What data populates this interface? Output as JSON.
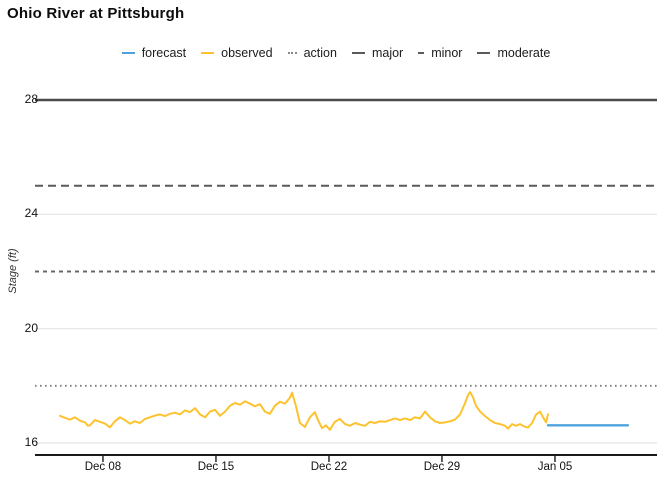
{
  "title": "Ohio River at Pittsburgh",
  "legend": [
    {
      "id": "forecast",
      "label": "forecast",
      "color": "#4FA3DC",
      "style": "solid",
      "w": 13
    },
    {
      "id": "observed",
      "label": "observed",
      "color": "#FDC32F",
      "style": "solid",
      "w": 13
    },
    {
      "id": "action",
      "label": "action",
      "color": "#8a8a8a",
      "style": "dotted",
      "w": 9
    },
    {
      "id": "major",
      "label": "major",
      "color": "#5a5a5a",
      "style": "solid",
      "w": 13
    },
    {
      "id": "minor",
      "label": "minor",
      "color": "#5a5a5a",
      "style": "solid",
      "w": 6
    },
    {
      "id": "moderate",
      "label": "moderate",
      "color": "#5a5a5a",
      "style": "solid",
      "w": 13
    }
  ],
  "chart_data": {
    "type": "line",
    "title": "Ohio River at Pittsburgh",
    "xlabel": "",
    "ylabel": "Stage (ft)",
    "grid": true,
    "legend_position": "top",
    "ylim": [
      15.58,
      28.0
    ],
    "yticks": [
      16,
      20,
      24,
      28
    ],
    "xlim_days": [
      -1.21,
      37.32
    ],
    "xticks": [
      {
        "day": 3,
        "label": "Dec 08"
      },
      {
        "day": 10,
        "label": "Dec 15"
      },
      {
        "day": 17,
        "label": "Dec 22"
      },
      {
        "day": 24,
        "label": "Dec 29"
      },
      {
        "day": 31,
        "label": "Jan 05"
      }
    ],
    "thresholds": [
      {
        "name": "action",
        "value": 18,
        "line": "dotted",
        "color": "#7d7d7d"
      },
      {
        "name": "minor",
        "value": 22,
        "line": "dashed-short",
        "color": "#666666"
      },
      {
        "name": "moderate",
        "value": 25,
        "line": "dashed-long",
        "color": "#5a5a5a"
      },
      {
        "name": "major",
        "value": 28,
        "line": "solid",
        "color": "#4a4a4a"
      }
    ],
    "series": [
      {
        "name": "observed",
        "color": "#FDC32F",
        "width": 2,
        "points": [
          [
            0.34,
            16.95
          ],
          [
            0.65,
            16.88
          ],
          [
            0.96,
            16.82
          ],
          [
            1.27,
            16.9
          ],
          [
            1.58,
            16.78
          ],
          [
            1.89,
            16.72
          ],
          [
            2.07,
            16.6
          ],
          [
            2.19,
            16.62
          ],
          [
            2.5,
            16.8
          ],
          [
            2.81,
            16.74
          ],
          [
            3.12,
            16.68
          ],
          [
            3.43,
            16.55
          ],
          [
            3.74,
            16.76
          ],
          [
            4.05,
            16.9
          ],
          [
            4.36,
            16.8
          ],
          [
            4.67,
            16.68
          ],
          [
            4.98,
            16.76
          ],
          [
            5.29,
            16.7
          ],
          [
            5.6,
            16.84
          ],
          [
            5.91,
            16.9
          ],
          [
            6.22,
            16.96
          ],
          [
            6.53,
            17.0
          ],
          [
            6.84,
            16.94
          ],
          [
            7.15,
            17.02
          ],
          [
            7.46,
            17.06
          ],
          [
            7.77,
            17.0
          ],
          [
            8.08,
            17.14
          ],
          [
            8.39,
            17.08
          ],
          [
            8.7,
            17.22
          ],
          [
            9.01,
            17.0
          ],
          [
            9.32,
            16.9
          ],
          [
            9.63,
            17.1
          ],
          [
            9.94,
            17.16
          ],
          [
            10.25,
            16.95
          ],
          [
            10.56,
            17.1
          ],
          [
            10.87,
            17.3
          ],
          [
            11.18,
            17.4
          ],
          [
            11.49,
            17.34
          ],
          [
            11.8,
            17.46
          ],
          [
            12.11,
            17.38
          ],
          [
            12.41,
            17.28
          ],
          [
            12.72,
            17.36
          ],
          [
            13.03,
            17.1
          ],
          [
            13.34,
            17.02
          ],
          [
            13.65,
            17.3
          ],
          [
            13.96,
            17.44
          ],
          [
            14.27,
            17.38
          ],
          [
            14.58,
            17.58
          ],
          [
            14.71,
            17.76
          ],
          [
            14.95,
            17.3
          ],
          [
            15.2,
            16.7
          ],
          [
            15.51,
            16.56
          ],
          [
            15.82,
            16.9
          ],
          [
            16.13,
            17.08
          ],
          [
            16.32,
            16.8
          ],
          [
            16.57,
            16.52
          ],
          [
            16.81,
            16.62
          ],
          [
            17.06,
            16.46
          ],
          [
            17.37,
            16.74
          ],
          [
            17.68,
            16.84
          ],
          [
            17.99,
            16.66
          ],
          [
            18.3,
            16.6
          ],
          [
            18.61,
            16.7
          ],
          [
            18.92,
            16.64
          ],
          [
            19.23,
            16.6
          ],
          [
            19.54,
            16.74
          ],
          [
            19.85,
            16.7
          ],
          [
            20.16,
            16.76
          ],
          [
            20.47,
            16.74
          ],
          [
            20.78,
            16.8
          ],
          [
            21.09,
            16.86
          ],
          [
            21.4,
            16.8
          ],
          [
            21.71,
            16.86
          ],
          [
            22.02,
            16.8
          ],
          [
            22.33,
            16.9
          ],
          [
            22.64,
            16.86
          ],
          [
            22.95,
            17.1
          ],
          [
            23.26,
            16.9
          ],
          [
            23.57,
            16.76
          ],
          [
            23.88,
            16.7
          ],
          [
            24.19,
            16.72
          ],
          [
            24.5,
            16.76
          ],
          [
            24.81,
            16.82
          ],
          [
            25.12,
            17.0
          ],
          [
            25.43,
            17.4
          ],
          [
            25.61,
            17.68
          ],
          [
            25.74,
            17.78
          ],
          [
            25.92,
            17.6
          ],
          [
            26.11,
            17.3
          ],
          [
            26.36,
            17.1
          ],
          [
            26.67,
            16.94
          ],
          [
            26.98,
            16.8
          ],
          [
            27.29,
            16.7
          ],
          [
            27.6,
            16.66
          ],
          [
            27.91,
            16.6
          ],
          [
            28.09,
            16.5
          ],
          [
            28.34,
            16.66
          ],
          [
            28.59,
            16.6
          ],
          [
            28.84,
            16.66
          ],
          [
            29.08,
            16.58
          ],
          [
            29.33,
            16.54
          ],
          [
            29.58,
            16.7
          ],
          [
            29.83,
            17.0
          ],
          [
            30.08,
            17.1
          ],
          [
            30.26,
            16.9
          ],
          [
            30.45,
            16.72
          ],
          [
            30.57,
            17.0
          ]
        ]
      },
      {
        "name": "forecast",
        "color": "#4FA3DC",
        "width": 2.4,
        "points": [
          [
            30.57,
            16.62
          ],
          [
            35.52,
            16.62
          ]
        ]
      }
    ]
  },
  "colors": {
    "grid": "#e4e4e4",
    "axis": "#1a1a1a",
    "tick_text": "#111111",
    "observed": "#FDC32F",
    "forecast": "#4FA3DC"
  }
}
